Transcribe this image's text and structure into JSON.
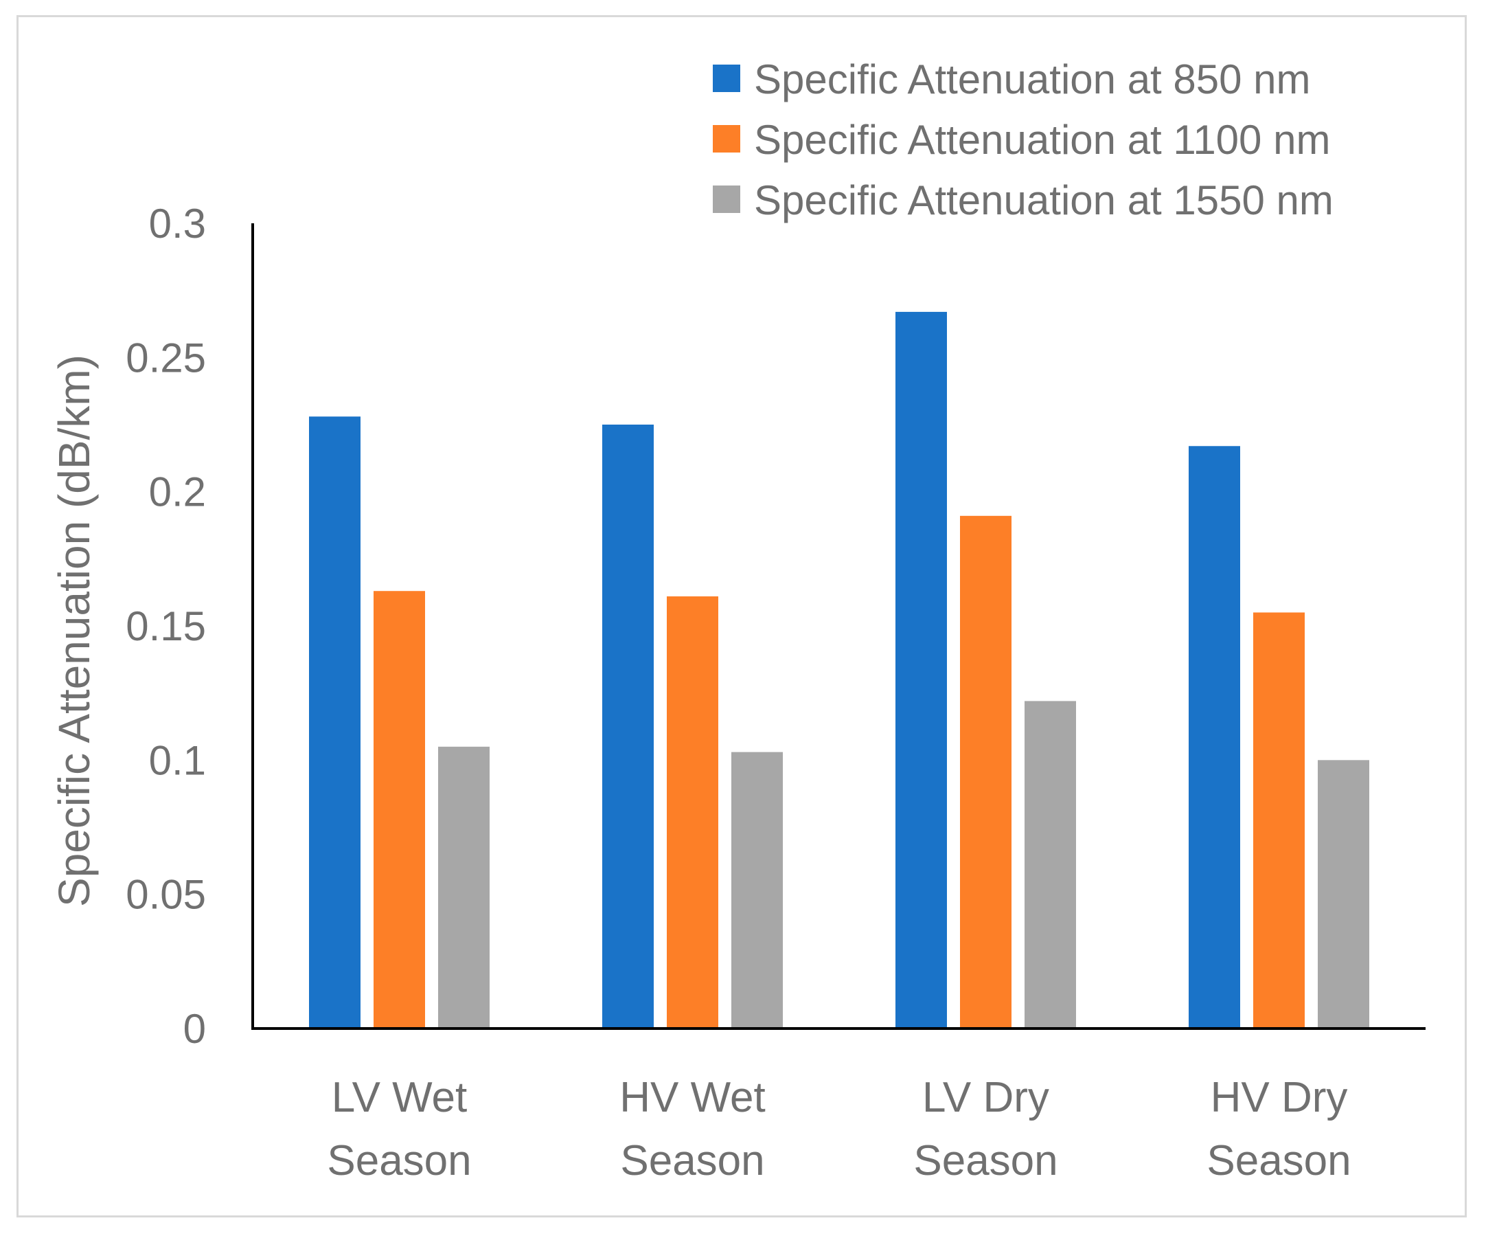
{
  "chart_data": {
    "type": "bar",
    "title": "",
    "xlabel": "",
    "ylabel": "Specific Attenuation (dB/km)",
    "ylim": [
      0,
      0.3
    ],
    "yticks": [
      "0",
      "0.05",
      "0.1",
      "0.15",
      "0.2",
      "0.25",
      "0.3"
    ],
    "grid": false,
    "legend_position": "top-right",
    "categories": [
      [
        "LV Wet",
        "Season"
      ],
      [
        "HV Wet",
        "Season"
      ],
      [
        "LV Dry",
        "Season"
      ],
      [
        "HV Dry",
        "Season"
      ]
    ],
    "series": [
      {
        "name": "Specific Attenuation at 850 nm",
        "color": "#1a73c8",
        "values": [
          0.228,
          0.225,
          0.267,
          0.217
        ]
      },
      {
        "name": "Specific Attenuation at 1100 nm",
        "color": "#fd7f27",
        "values": [
          0.163,
          0.161,
          0.191,
          0.155
        ]
      },
      {
        "name": "Specific Attenuation at 1550 nm",
        "color": "#a7a7a7",
        "values": [
          0.105,
          0.103,
          0.122,
          0.1
        ]
      }
    ]
  }
}
